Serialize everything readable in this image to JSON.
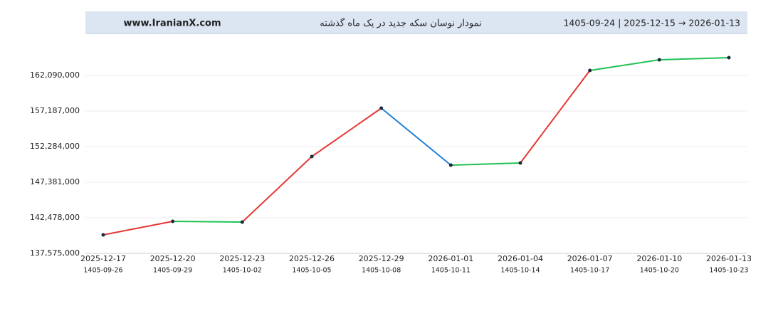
{
  "header": {
    "site": "www.IranianX.com",
    "range": "1405-09-24  |  2025-12-15  →  2026-01-13"
  },
  "chart_data": {
    "type": "line",
    "title": "نمودار نوسان سکه جدید در یک ماه گذشته",
    "categories": [
      "2025-12-17",
      "2025-12-20",
      "2025-12-23",
      "2025-12-26",
      "2025-12-29",
      "2026-01-01",
      "2026-01-04",
      "2026-01-07",
      "2026-01-10",
      "2026-01-13"
    ],
    "secondary_categories": [
      "1405-09-26",
      "1405-09-29",
      "1405-10-02",
      "1405-10-05",
      "1405-10-08",
      "1405-10-11",
      "1405-10-14",
      "1405-10-17",
      "1405-10-20",
      "1405-10-23"
    ],
    "values": [
      140125000,
      141988000,
      141890000,
      150911000,
      157579000,
      149734000,
      150029000,
      162776000,
      164247000,
      164541000
    ],
    "segment_colors": [
      "#e53935",
      "#1fc254",
      "#e53935",
      "#e53935",
      "#1e7fd6",
      "#1fc254",
      "#e53935",
      "#1fc254",
      "#1fc254"
    ],
    "ylim": [
      137575000,
      167777480
    ],
    "yticks": [
      {
        "value": 137575000,
        "label": "137,575,000"
      },
      {
        "value": 142478000,
        "label": "142,478,000"
      },
      {
        "value": 147381000,
        "label": "147,381,000"
      },
      {
        "value": 152284000,
        "label": "152,284,000"
      },
      {
        "value": 157187000,
        "label": "157,187,000"
      },
      {
        "value": 162090000,
        "label": "162,090,000"
      }
    ],
    "grid": true
  }
}
